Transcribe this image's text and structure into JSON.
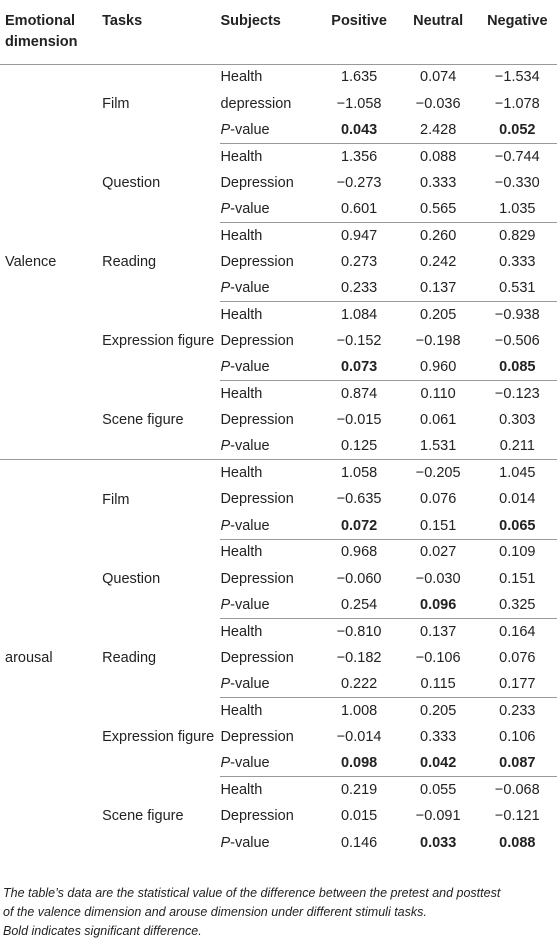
{
  "headers": {
    "dimension_line1": "Emotional",
    "dimension_line2": "dimension",
    "tasks": "Tasks",
    "subjects": "Subjects",
    "positive": "Positive",
    "neutral": "Neutral",
    "negative": "Negative"
  },
  "dimensions": [
    {
      "name": "Valence",
      "tasks": [
        {
          "name": "Film",
          "rows": [
            {
              "subject": "Health",
              "pos": "1.635",
              "neu": "0.074",
              "neg": "−1.534"
            },
            {
              "subject": "depression",
              "pos": "−1.058",
              "neu": "−0.036",
              "neg": "−1.078"
            },
            {
              "subject_p": "-value",
              "pos": "0.043",
              "neu": "2.428",
              "neg": "0.052",
              "bold": [
                "pos",
                "neg"
              ]
            }
          ]
        },
        {
          "name": "Question",
          "rows": [
            {
              "subject": "Health",
              "pos": "1.356",
              "neu": "0.088",
              "neg": "−0.744"
            },
            {
              "subject": "Depression",
              "pos": "−0.273",
              "neu": "0.333",
              "neg": "−0.330"
            },
            {
              "subject_p": "-value",
              "pos": "0.601",
              "neu": "0.565",
              "neg": "1.035",
              "bold": []
            }
          ]
        },
        {
          "name": "Reading",
          "rows": [
            {
              "subject": "Health",
              "pos": "0.947",
              "neu": "0.260",
              "neg": "0.829"
            },
            {
              "subject": "Depression",
              "pos": "0.273",
              "neu": "0.242",
              "neg": "0.333"
            },
            {
              "subject_p": "-value",
              "pos": "0.233",
              "neu": "0.137",
              "neg": "0.531",
              "bold": []
            }
          ]
        },
        {
          "name": "Expression figure",
          "rows": [
            {
              "subject": "Health",
              "pos": "1.084",
              "neu": "0.205",
              "neg": "−0.938"
            },
            {
              "subject": "Depression",
              "pos": "−0.152",
              "neu": "−0.198",
              "neg": "−0.506"
            },
            {
              "subject_p": "-value",
              "pos": "0.073",
              "neu": "0.960",
              "neg": "0.085",
              "bold": [
                "pos",
                "neg"
              ]
            }
          ]
        },
        {
          "name": "Scene figure",
          "rows": [
            {
              "subject": "Health",
              "pos": "0.874",
              "neu": "0.110",
              "neg": "−0.123"
            },
            {
              "subject": "Depression",
              "pos": "−0.015",
              "neu": "0.061",
              "neg": "0.303"
            },
            {
              "subject_p": "-value",
              "pos": "0.125",
              "neu": "1.531",
              "neg": "0.211",
              "bold": []
            }
          ]
        }
      ]
    },
    {
      "name": "arousal",
      "tasks": [
        {
          "name": "Film",
          "rows": [
            {
              "subject": "Health",
              "pos": "1.058",
              "neu": "−0.205",
              "neg": "1.045"
            },
            {
              "subject": "Depression",
              "pos": "−0.635",
              "neu": "0.076",
              "neg": "0.014"
            },
            {
              "subject_p": "-value",
              "pos": "0.072",
              "neu": "0.151",
              "neg": "0.065",
              "bold": [
                "pos",
                "neg"
              ]
            }
          ]
        },
        {
          "name": "Question",
          "rows": [
            {
              "subject": "Health",
              "pos": "0.968",
              "neu": "0.027",
              "neg": "0.109"
            },
            {
              "subject": "Depression",
              "pos": "−0.060",
              "neu": "−0.030",
              "neg": "0.151"
            },
            {
              "subject_p": "-value",
              "pos": "0.254",
              "neu": "0.096",
              "neg": "0.325",
              "bold": [
                "neu"
              ]
            }
          ]
        },
        {
          "name": "Reading",
          "rows": [
            {
              "subject": "Health",
              "pos": "−0.810",
              "neu": "0.137",
              "neg": "0.164"
            },
            {
              "subject": "Depression",
              "pos": "−0.182",
              "neu": "−0.106",
              "neg": "0.076"
            },
            {
              "subject_p": "-value",
              "pos": "0.222",
              "neu": "0.115",
              "neg": "0.177",
              "bold": []
            }
          ]
        },
        {
          "name": "Expression figure",
          "rows": [
            {
              "subject": "Health",
              "pos": "1.008",
              "neu": "0.205",
              "neg": "0.233"
            },
            {
              "subject": "Depression",
              "pos": "−0.014",
              "neu": "0.333",
              "neg": "0.106"
            },
            {
              "subject_p": "-value",
              "pos": "0.098",
              "neu": "0.042",
              "neg": "0.087",
              "bold": [
                "pos",
                "neu",
                "neg"
              ]
            }
          ]
        },
        {
          "name": "Scene figure",
          "rows": [
            {
              "subject": "Health",
              "pos": "0.219",
              "neu": "0.055",
              "neg": "−0.068"
            },
            {
              "subject": "Depression",
              "pos": "0.015",
              "neu": "−0.091",
              "neg": "−0.121"
            },
            {
              "subject_p": "-value",
              "pos": "0.146",
              "neu": "0.033",
              "neg": "0.088",
              "bold": [
                "neu",
                "neg"
              ]
            }
          ]
        }
      ]
    }
  ],
  "p_letter": "P",
  "footnote": {
    "line1": "The table’s data are the statistical value of the difference between the pretest and posttest",
    "line2": "of the valence dimension and arouse dimension under different stimuli tasks.",
    "line3": "Bold indicates significant difference."
  }
}
